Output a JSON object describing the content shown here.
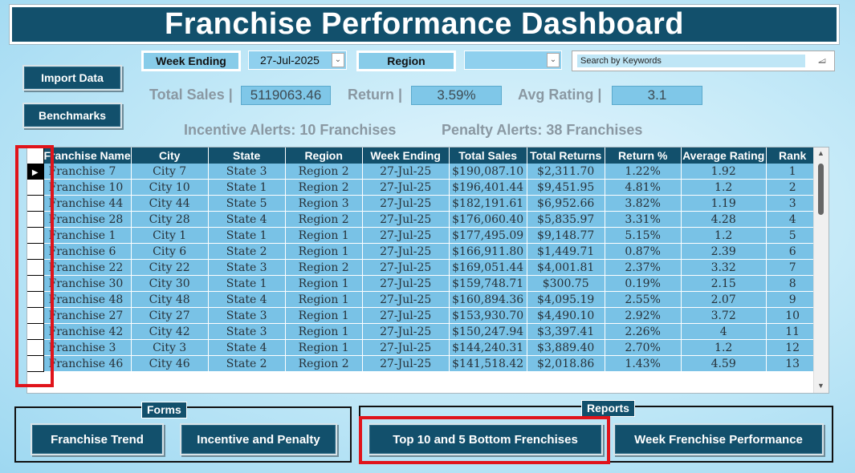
{
  "title": "Franchise Performance Dashboard",
  "buttons": {
    "import_data": "Import Data",
    "benchmarks": "Benchmarks"
  },
  "filters": {
    "week_ending_label": "Week Ending",
    "week_ending_value": "27-Jul-2025",
    "region_label": "Region",
    "region_value": "",
    "search_placeholder": "Search by Keywords"
  },
  "metrics": {
    "total_sales_label": "Total Sales |",
    "total_sales_value": "5119063.46",
    "return_label": "Return |",
    "return_value": "3.59%",
    "avg_rating_label": "Avg Rating |",
    "avg_rating_value": "3.1"
  },
  "alerts": {
    "incentive": "Incentive Alerts: 10 Franchises",
    "penalty": "Penalty Alerts: 38 Franchises"
  },
  "table": {
    "columns": [
      "Franchise Name",
      "City",
      "State",
      "Region",
      "Week Ending",
      "Total Sales",
      "Total Returns",
      "Return %",
      "Average Rating",
      "Rank"
    ],
    "rows": [
      [
        "Franchise  7",
        "City  7",
        "State  3",
        "Region  2",
        "27-Jul-25",
        "$190,087.10",
        "$2,311.70",
        "1.22%",
        "1.92",
        "1"
      ],
      [
        "Franchise  10",
        "City  10",
        "State  1",
        "Region  2",
        "27-Jul-25",
        "$196,401.44",
        "$9,451.95",
        "4.81%",
        "1.2",
        "2"
      ],
      [
        "Franchise  44",
        "City  44",
        "State  5",
        "Region  3",
        "27-Jul-25",
        "$182,191.61",
        "$6,952.66",
        "3.82%",
        "1.19",
        "3"
      ],
      [
        "Franchise  28",
        "City  28",
        "State  4",
        "Region  2",
        "27-Jul-25",
        "$176,060.40",
        "$5,835.97",
        "3.31%",
        "4.28",
        "4"
      ],
      [
        "Franchise  1",
        "City  1",
        "State  1",
        "Region  1",
        "27-Jul-25",
        "$177,495.09",
        "$9,148.77",
        "5.15%",
        "1.2",
        "5"
      ],
      [
        "Franchise  6",
        "City  6",
        "State  2",
        "Region  1",
        "27-Jul-25",
        "$166,911.80",
        "$1,449.71",
        "0.87%",
        "2.39",
        "6"
      ],
      [
        "Franchise  22",
        "City  22",
        "State  3",
        "Region  2",
        "27-Jul-25",
        "$169,051.44",
        "$4,001.81",
        "2.37%",
        "3.32",
        "7"
      ],
      [
        "Franchise  30",
        "City  30",
        "State  1",
        "Region  1",
        "27-Jul-25",
        "$159,748.71",
        "$300.75",
        "0.19%",
        "2.15",
        "8"
      ],
      [
        "Franchise  48",
        "City  48",
        "State  4",
        "Region  1",
        "27-Jul-25",
        "$160,894.36",
        "$4,095.19",
        "2.55%",
        "2.07",
        "9"
      ],
      [
        "Franchise  27",
        "City  27",
        "State  3",
        "Region  1",
        "27-Jul-25",
        "$153,930.70",
        "$4,490.10",
        "2.92%",
        "3.72",
        "10"
      ],
      [
        "Franchise  42",
        "City  42",
        "State  3",
        "Region  1",
        "27-Jul-25",
        "$150,247.94",
        "$3,397.41",
        "2.26%",
        "4",
        "11"
      ],
      [
        "Franchise  3",
        "City  3",
        "State  4",
        "Region  1",
        "27-Jul-25",
        "$144,240.31",
        "$3,889.40",
        "2.70%",
        "1.2",
        "12"
      ],
      [
        "Franchise  46",
        "City  46",
        "State  2",
        "Region  2",
        "27-Jul-25",
        "$141,518.42",
        "$2,018.86",
        "1.43%",
        "4.59",
        "13"
      ]
    ]
  },
  "forms": {
    "title": "Forms",
    "franchise_trend": "Franchise Trend",
    "incentive_penalty": "Incentive and Penalty"
  },
  "reports": {
    "title": "Reports",
    "top_bottom": "Top 10 and 5 Bottom Frenchises",
    "week_performance": "Week Frenchise Performance"
  },
  "colors": {
    "header_bg": "#12506c",
    "cell_bg": "#79c2e6",
    "highlight": "#e0141b"
  }
}
